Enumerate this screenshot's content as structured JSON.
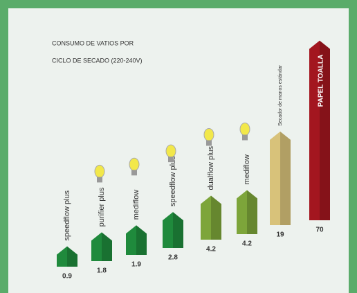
{
  "chart_data": {
    "type": "bar",
    "title": [
      "CONSUMO DE VATIOS POR",
      "CICLO DE SECADO (220-240V)"
    ],
    "categories": [
      "speedflow plus",
      "purifier plus",
      "mediflow",
      "speedflow plus",
      "dualflow plus",
      "mediflow",
      "Secador de manos estándar",
      "PAPEL TOALLA"
    ],
    "values": [
      0.9,
      1.8,
      1.9,
      2.8,
      4.2,
      4.2,
      19,
      70
    ],
    "colors": [
      "#1f8a3c",
      "#1f8a3c",
      "#1f8a3c",
      "#1f8a3c",
      "#7da53a",
      "#7da53a",
      "#d8c27a",
      "#a3161f"
    ]
  }
}
